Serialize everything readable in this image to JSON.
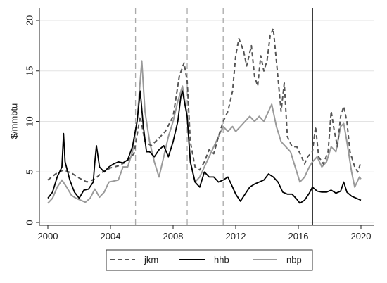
{
  "chart_data": {
    "type": "line",
    "title": "",
    "xlabel": "",
    "ylabel": "$/mmbtu",
    "xlim": [
      2000,
      2020
    ],
    "ylim": [
      0,
      20
    ],
    "xticks": [
      2000,
      2004,
      2008,
      2012,
      2016,
      2020
    ],
    "yticks": [
      0,
      5,
      10,
      15,
      20
    ],
    "grid": "horizontal",
    "legend_position": "bottom",
    "vlines": [
      {
        "x": 2005.6,
        "style": "dashed",
        "color": "#aaaaaa"
      },
      {
        "x": 2008.9,
        "style": "dashed",
        "color": "#aaaaaa"
      },
      {
        "x": 2011.2,
        "style": "dashed",
        "color": "#aaaaaa"
      },
      {
        "x": 2016.9,
        "style": "solid",
        "color": "#111111"
      }
    ],
    "series": [
      {
        "name": "jkm",
        "color": "#555555",
        "dash": "6,4",
        "points": [
          [
            2000.0,
            4.2
          ],
          [
            2000.5,
            4.8
          ],
          [
            2001.0,
            5.2
          ],
          [
            2001.5,
            4.9
          ],
          [
            2002.0,
            4.4
          ],
          [
            2002.5,
            4.0
          ],
          [
            2003.0,
            4.3
          ],
          [
            2003.5,
            5.0
          ],
          [
            2004.0,
            5.4
          ],
          [
            2004.5,
            5.6
          ],
          [
            2005.0,
            6.0
          ],
          [
            2005.5,
            6.8
          ],
          [
            2005.9,
            10.5
          ],
          [
            2006.2,
            8.0
          ],
          [
            2006.6,
            7.6
          ],
          [
            2007.0,
            8.2
          ],
          [
            2007.5,
            9.0
          ],
          [
            2008.0,
            10.5
          ],
          [
            2008.4,
            14.5
          ],
          [
            2008.7,
            15.8
          ],
          [
            2008.9,
            14.0
          ],
          [
            2009.1,
            8.0
          ],
          [
            2009.4,
            5.5
          ],
          [
            2009.7,
            5.2
          ],
          [
            2010.0,
            6.0
          ],
          [
            2010.3,
            7.2
          ],
          [
            2010.6,
            6.8
          ],
          [
            2010.9,
            8.5
          ],
          [
            2011.2,
            10.0
          ],
          [
            2011.5,
            11.0
          ],
          [
            2011.8,
            13.0
          ],
          [
            2012.0,
            16.5
          ],
          [
            2012.2,
            18.2
          ],
          [
            2012.5,
            17.0
          ],
          [
            2012.7,
            15.5
          ],
          [
            2013.0,
            17.5
          ],
          [
            2013.2,
            14.5
          ],
          [
            2013.4,
            13.5
          ],
          [
            2013.6,
            16.5
          ],
          [
            2013.8,
            15.0
          ],
          [
            2014.0,
            16.0
          ],
          [
            2014.2,
            18.5
          ],
          [
            2014.4,
            19.2
          ],
          [
            2014.6,
            16.0
          ],
          [
            2014.9,
            11.0
          ],
          [
            2015.1,
            13.8
          ],
          [
            2015.3,
            8.5
          ],
          [
            2015.6,
            7.5
          ],
          [
            2015.9,
            7.5
          ],
          [
            2016.2,
            6.5
          ],
          [
            2016.4,
            5.8
          ],
          [
            2016.6,
            6.5
          ],
          [
            2016.9,
            7.0
          ],
          [
            2017.1,
            9.5
          ],
          [
            2017.3,
            6.5
          ],
          [
            2017.6,
            5.8
          ],
          [
            2017.9,
            7.0
          ],
          [
            2018.1,
            11.0
          ],
          [
            2018.3,
            9.0
          ],
          [
            2018.5,
            7.5
          ],
          [
            2018.7,
            10.5
          ],
          [
            2018.9,
            11.5
          ],
          [
            2019.1,
            10.0
          ],
          [
            2019.3,
            7.0
          ],
          [
            2019.6,
            5.5
          ],
          [
            2019.8,
            5.0
          ],
          [
            2020.0,
            6.0
          ]
        ]
      },
      {
        "name": "hhb",
        "color": "#000000",
        "dash": "",
        "points": [
          [
            2000.0,
            2.4
          ],
          [
            2000.3,
            3.0
          ],
          [
            2000.6,
            4.5
          ],
          [
            2000.9,
            5.5
          ],
          [
            2001.0,
            8.8
          ],
          [
            2001.1,
            6.0
          ],
          [
            2001.4,
            4.2
          ],
          [
            2001.7,
            3.0
          ],
          [
            2002.0,
            2.4
          ],
          [
            2002.3,
            3.2
          ],
          [
            2002.6,
            3.3
          ],
          [
            2002.9,
            4.0
          ],
          [
            2003.0,
            6.0
          ],
          [
            2003.1,
            7.6
          ],
          [
            2003.3,
            5.5
          ],
          [
            2003.6,
            5.0
          ],
          [
            2003.9,
            5.5
          ],
          [
            2004.2,
            5.8
          ],
          [
            2004.5,
            6.0
          ],
          [
            2004.8,
            5.9
          ],
          [
            2005.1,
            6.2
          ],
          [
            2005.4,
            7.5
          ],
          [
            2005.7,
            10.0
          ],
          [
            2005.9,
            13.0
          ],
          [
            2006.1,
            9.5
          ],
          [
            2006.3,
            7.0
          ],
          [
            2006.5,
            7.0
          ],
          [
            2006.8,
            6.5
          ],
          [
            2007.1,
            7.2
          ],
          [
            2007.4,
            7.6
          ],
          [
            2007.7,
            6.5
          ],
          [
            2008.0,
            8.0
          ],
          [
            2008.3,
            10.0
          ],
          [
            2008.5,
            12.5
          ],
          [
            2008.6,
            13.0
          ],
          [
            2008.9,
            10.5
          ],
          [
            2009.1,
            6.0
          ],
          [
            2009.4,
            4.0
          ],
          [
            2009.7,
            3.5
          ],
          [
            2010.0,
            5.0
          ],
          [
            2010.3,
            4.5
          ],
          [
            2010.6,
            4.5
          ],
          [
            2010.9,
            4.0
          ],
          [
            2011.2,
            4.2
          ],
          [
            2011.5,
            4.5
          ],
          [
            2011.8,
            3.5
          ],
          [
            2012.0,
            2.8
          ],
          [
            2012.3,
            2.1
          ],
          [
            2012.6,
            2.8
          ],
          [
            2012.9,
            3.5
          ],
          [
            2013.2,
            3.8
          ],
          [
            2013.5,
            4.0
          ],
          [
            2013.8,
            4.2
          ],
          [
            2014.1,
            4.8
          ],
          [
            2014.4,
            4.5
          ],
          [
            2014.7,
            4.0
          ],
          [
            2015.0,
            3.0
          ],
          [
            2015.3,
            2.8
          ],
          [
            2015.6,
            2.8
          ],
          [
            2015.9,
            2.3
          ],
          [
            2016.1,
            1.9
          ],
          [
            2016.4,
            2.2
          ],
          [
            2016.7,
            2.9
          ],
          [
            2016.9,
            3.5
          ],
          [
            2017.2,
            3.1
          ],
          [
            2017.5,
            3.0
          ],
          [
            2017.8,
            3.0
          ],
          [
            2018.1,
            3.2
          ],
          [
            2018.4,
            2.9
          ],
          [
            2018.7,
            3.1
          ],
          [
            2018.9,
            4.0
          ],
          [
            2019.1,
            3.0
          ],
          [
            2019.4,
            2.6
          ],
          [
            2019.7,
            2.4
          ],
          [
            2020.0,
            2.2
          ]
        ]
      },
      {
        "name": "nbp",
        "color": "#9a9a9a",
        "dash": "",
        "points": [
          [
            2000.0,
            1.9
          ],
          [
            2000.3,
            2.4
          ],
          [
            2000.6,
            3.5
          ],
          [
            2000.9,
            4.2
          ],
          [
            2001.2,
            3.5
          ],
          [
            2001.5,
            2.7
          ],
          [
            2001.8,
            2.4
          ],
          [
            2002.1,
            2.2
          ],
          [
            2002.4,
            2.0
          ],
          [
            2002.7,
            2.4
          ],
          [
            2003.0,
            3.3
          ],
          [
            2003.3,
            2.5
          ],
          [
            2003.6,
            3.0
          ],
          [
            2003.9,
            4.0
          ],
          [
            2004.2,
            4.1
          ],
          [
            2004.5,
            4.2
          ],
          [
            2004.8,
            5.5
          ],
          [
            2005.1,
            5.5
          ],
          [
            2005.4,
            7.0
          ],
          [
            2005.7,
            10.0
          ],
          [
            2006.0,
            16.0
          ],
          [
            2006.2,
            11.0
          ],
          [
            2006.5,
            8.0
          ],
          [
            2006.8,
            6.0
          ],
          [
            2007.1,
            4.5
          ],
          [
            2007.4,
            6.5
          ],
          [
            2007.7,
            8.5
          ],
          [
            2008.0,
            10.0
          ],
          [
            2008.3,
            12.0
          ],
          [
            2008.6,
            13.5
          ],
          [
            2008.9,
            10.5
          ],
          [
            2009.1,
            6.0
          ],
          [
            2009.4,
            4.0
          ],
          [
            2009.7,
            4.5
          ],
          [
            2010.0,
            5.5
          ],
          [
            2010.3,
            6.5
          ],
          [
            2010.6,
            7.5
          ],
          [
            2010.9,
            8.5
          ],
          [
            2011.2,
            9.5
          ],
          [
            2011.5,
            9.0
          ],
          [
            2011.8,
            9.5
          ],
          [
            2012.0,
            9.0
          ],
          [
            2012.3,
            9.5
          ],
          [
            2012.6,
            10.0
          ],
          [
            2012.9,
            10.5
          ],
          [
            2013.2,
            10.0
          ],
          [
            2013.5,
            10.5
          ],
          [
            2013.8,
            10.0
          ],
          [
            2014.1,
            11.0
          ],
          [
            2014.3,
            11.7
          ],
          [
            2014.6,
            9.5
          ],
          [
            2014.9,
            8.0
          ],
          [
            2015.2,
            7.5
          ],
          [
            2015.5,
            7.0
          ],
          [
            2015.8,
            5.5
          ],
          [
            2016.1,
            4.0
          ],
          [
            2016.4,
            4.5
          ],
          [
            2016.7,
            5.5
          ],
          [
            2016.9,
            6.0
          ],
          [
            2017.2,
            6.5
          ],
          [
            2017.5,
            5.5
          ],
          [
            2017.8,
            6.0
          ],
          [
            2018.1,
            7.5
          ],
          [
            2018.4,
            7.0
          ],
          [
            2018.7,
            9.5
          ],
          [
            2018.9,
            9.8
          ],
          [
            2019.1,
            8.0
          ],
          [
            2019.4,
            5.0
          ],
          [
            2019.6,
            3.5
          ],
          [
            2019.9,
            4.5
          ],
          [
            2020.0,
            4.3
          ]
        ]
      }
    ]
  }
}
